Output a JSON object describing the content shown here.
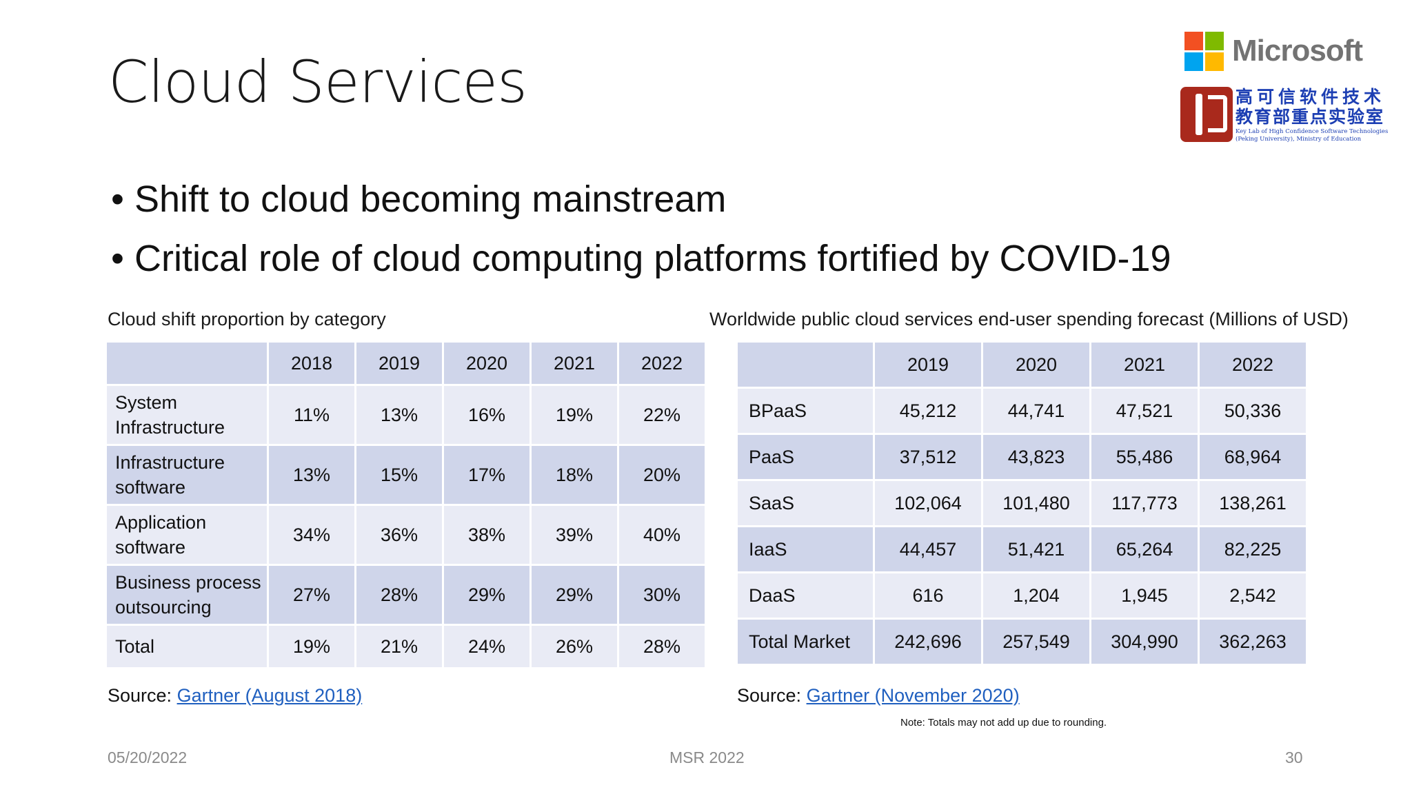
{
  "slide": {
    "title": "Cloud Services",
    "bullets": [
      "Shift to cloud becoming mainstream",
      "Critical role of cloud computing platforms fortified by COVID-19"
    ]
  },
  "logos": {
    "microsoft": {
      "wordmark": "Microsoft",
      "colors": [
        "#f25022",
        "#7fba00",
        "#00a4ef",
        "#ffb900"
      ]
    },
    "lab": {
      "cn_line1": "高可信软件技术",
      "cn_line2": "教育部重点实验室",
      "en_line1": "Key Lab of High Confidence Software Technologies",
      "en_line2": "(Peking University), Ministry of Education",
      "emblem_color": "#a9291c",
      "text_color": "#1d3fb3"
    }
  },
  "table_left": {
    "caption": "Cloud shift proportion by category",
    "columns": [
      "",
      "2018",
      "2019",
      "2020",
      "2021",
      "2022"
    ],
    "rows": [
      {
        "label": "System Infrastructure",
        "values": [
          "11%",
          "13%",
          "16%",
          "19%",
          "22%"
        ]
      },
      {
        "label": "Infrastructure software",
        "values": [
          "13%",
          "15%",
          "17%",
          "18%",
          "20%"
        ]
      },
      {
        "label": "Application software",
        "values": [
          "34%",
          "36%",
          "38%",
          "39%",
          "40%"
        ]
      },
      {
        "label": "Business process outsourcing",
        "values": [
          "27%",
          "28%",
          "29%",
          "29%",
          "30%"
        ]
      },
      {
        "label": "Total",
        "values": [
          "19%",
          "21%",
          "24%",
          "26%",
          "28%"
        ]
      }
    ],
    "source_prefix": "Source: ",
    "source_link": "Gartner (August 2018)"
  },
  "table_right": {
    "caption": "Worldwide public cloud services end-user spending forecast (Millions of USD)",
    "columns": [
      "",
      "2019",
      "2020",
      "2021",
      "2022"
    ],
    "rows": [
      {
        "label": "BPaaS",
        "values": [
          "45,212",
          "44,741",
          "47,521",
          "50,336"
        ]
      },
      {
        "label": "PaaS",
        "values": [
          "37,512",
          "43,823",
          "55,486",
          "68,964"
        ]
      },
      {
        "label": "SaaS",
        "values": [
          "102,064",
          "101,480",
          "117,773",
          "138,261"
        ]
      },
      {
        "label": "IaaS",
        "values": [
          "44,457",
          "51,421",
          "65,264",
          "82,225"
        ]
      },
      {
        "label": "DaaS",
        "values": [
          "616",
          "1,204",
          "1,945",
          "2,542"
        ]
      },
      {
        "label": "Total Market",
        "values": [
          "242,696",
          "257,549",
          "304,990",
          "362,263"
        ]
      }
    ],
    "source_prefix": "Source: ",
    "source_link": "Gartner (November 2020)",
    "note": "Note: Totals may not add up due to rounding."
  },
  "footer": {
    "date": "05/20/2022",
    "center": "MSR 2022",
    "page": "30"
  },
  "colors": {
    "table_header": "#cfd5ea",
    "row_dark": "#cfd5ea",
    "row_light": "#e9ebf5",
    "link": "#1f5fbf"
  }
}
